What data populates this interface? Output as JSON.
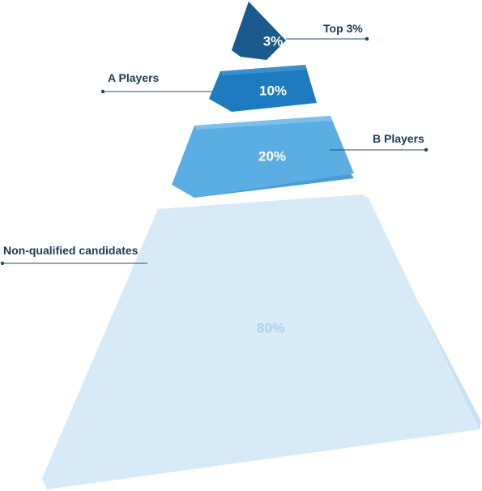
{
  "tiers": [
    {
      "id": "top",
      "percent": "3%",
      "label": "Top 3%",
      "color": "#1a5a8c",
      "side_color": "#144a75",
      "text_color": "#ffffff"
    },
    {
      "id": "a",
      "percent": "10%",
      "label": "A Players",
      "color": "#1e7bbf",
      "side_color": "#1a6aa6",
      "text_color": "#ffffff"
    },
    {
      "id": "b",
      "percent": "20%",
      "label": "B Players",
      "color": "#5aaee3",
      "side_color": "#4a9dd3",
      "text_color": "#ffffff"
    },
    {
      "id": "non",
      "percent": "80%",
      "label": "Non-qualified candidates",
      "color": "#d6eaf7",
      "side_color": "#c8e1f2",
      "text_color": "#a9d3ef"
    }
  ],
  "colors": {
    "label_text": "#1a3a55",
    "leader_line": "#2a4a66"
  }
}
